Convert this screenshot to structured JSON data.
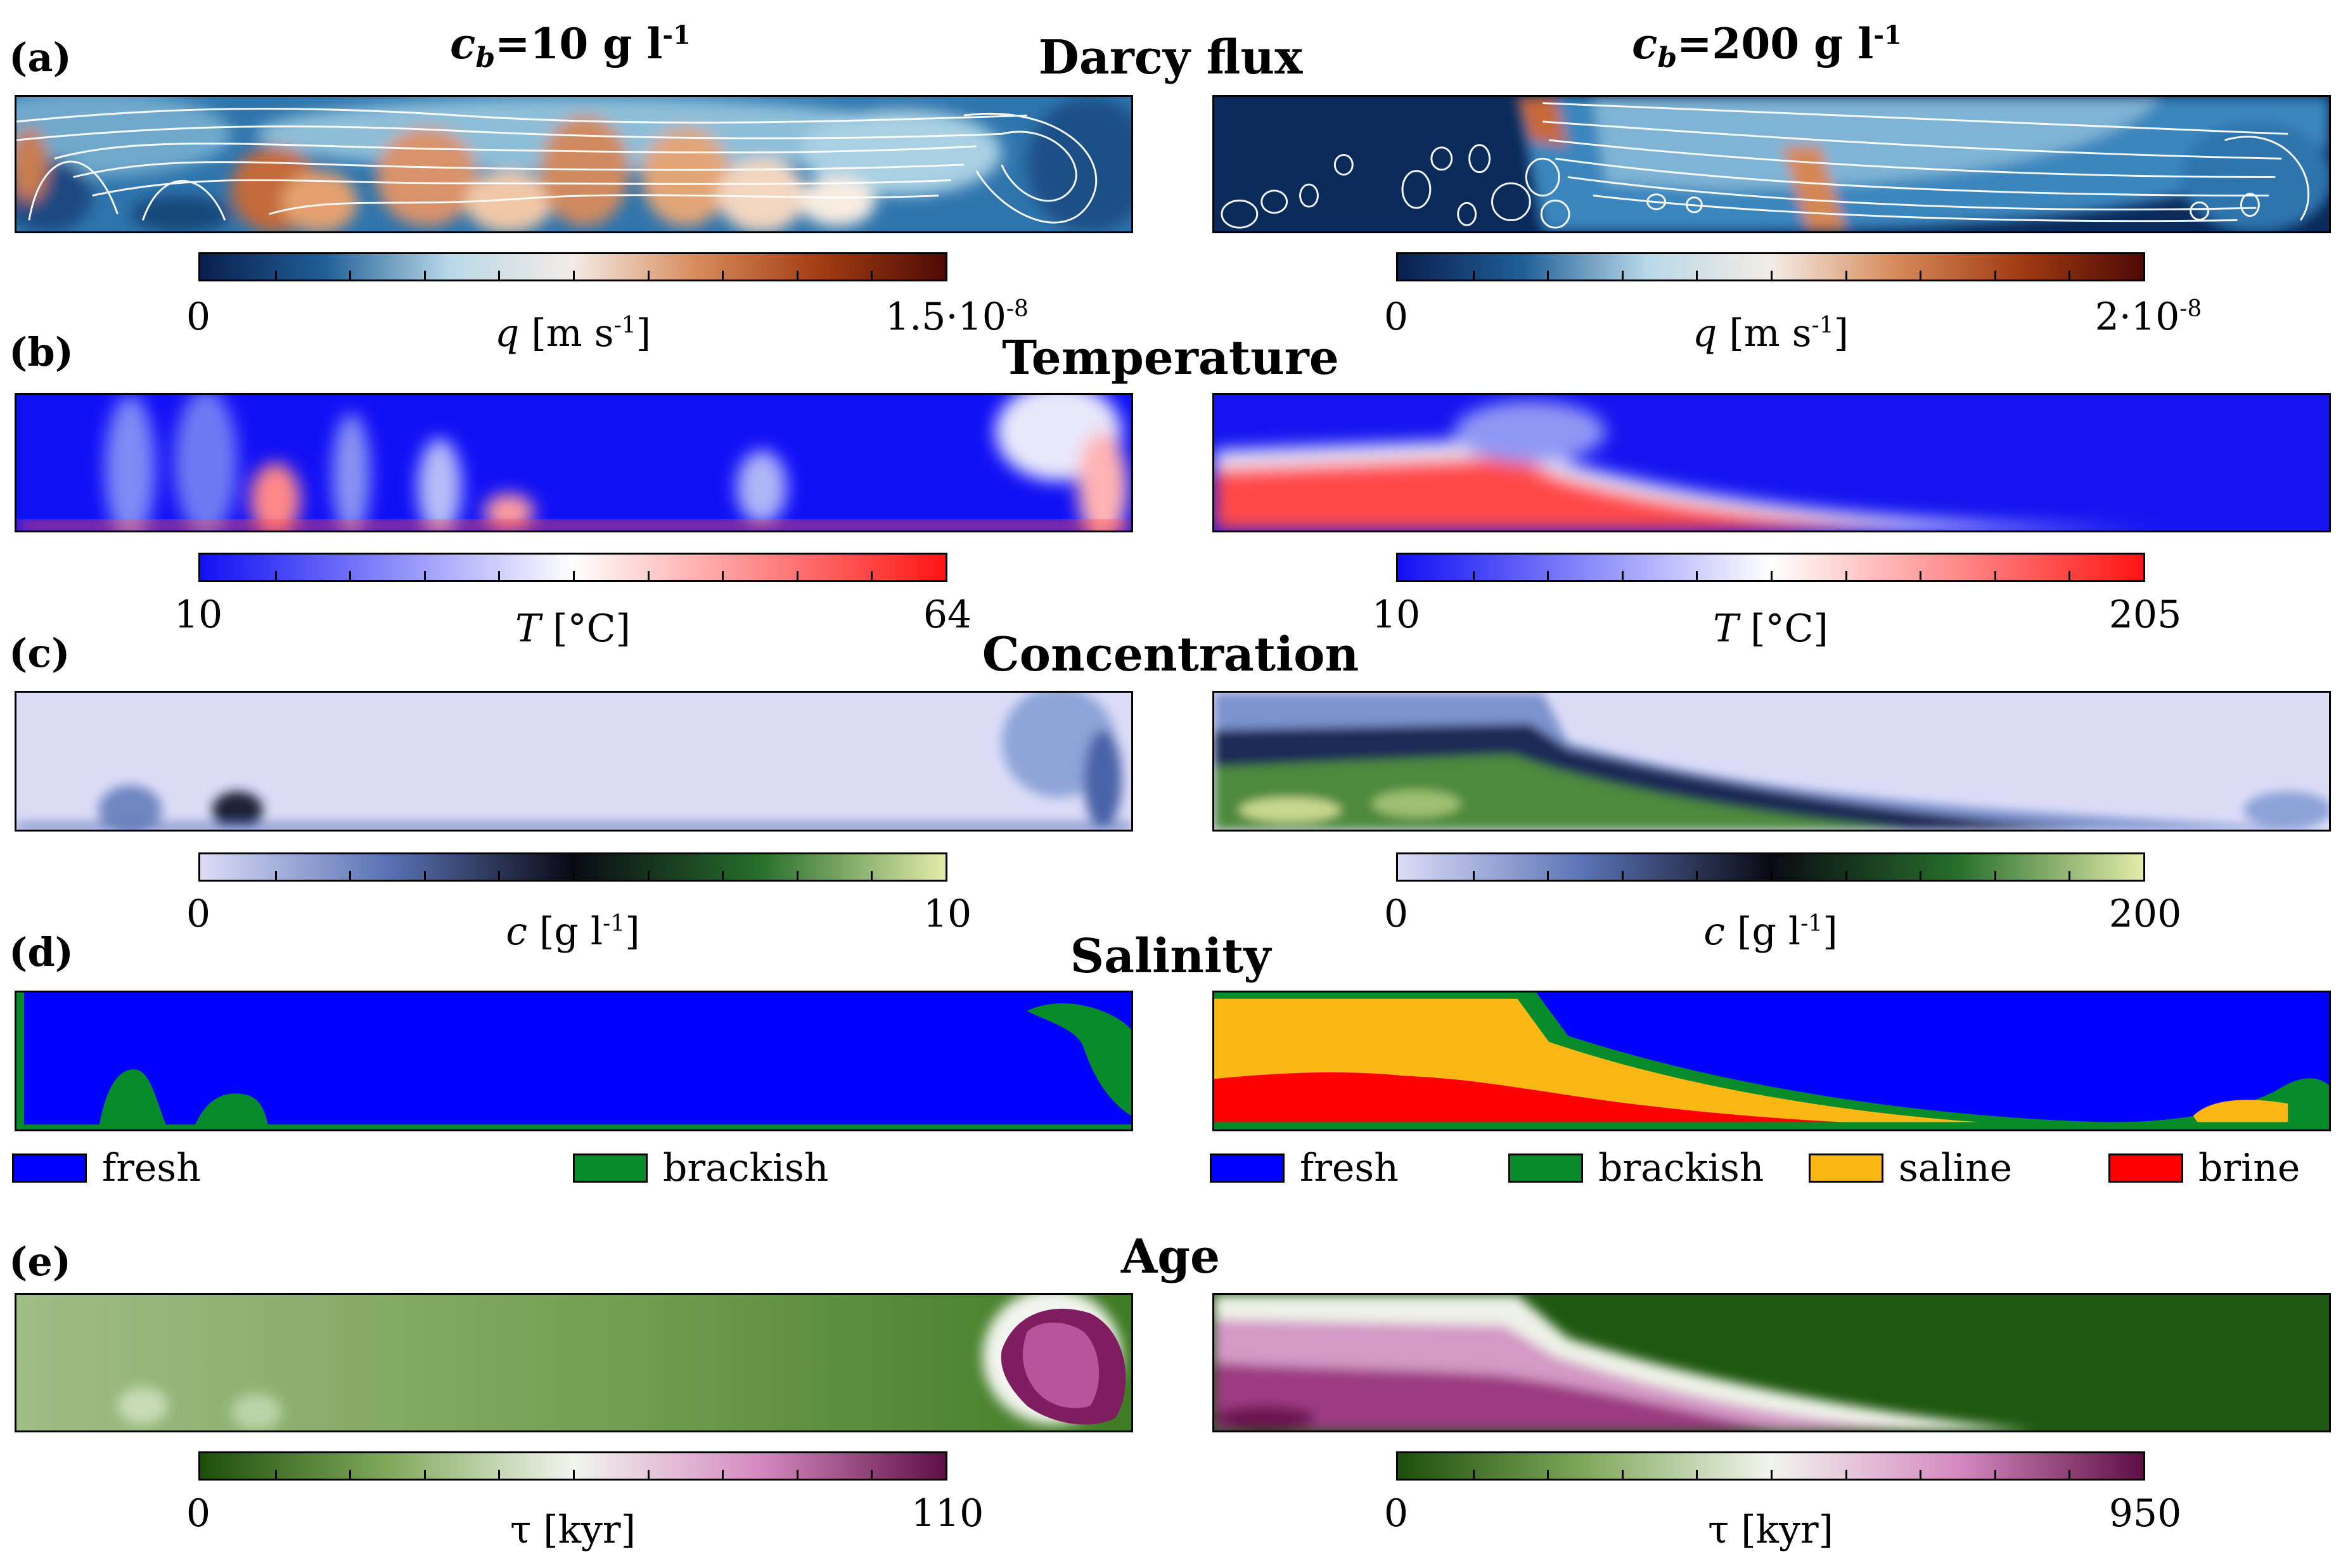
{
  "panels": {
    "a": {
      "letter": "(a)",
      "title": "Darcy flux"
    },
    "b": {
      "letter": "(b)",
      "title": "Temperature"
    },
    "c": {
      "letter": "(c)",
      "title": "Concentration"
    },
    "d": {
      "letter": "(d)",
      "title": "Salinity"
    },
    "e": {
      "letter": "(e)",
      "title": "Age"
    }
  },
  "columns": {
    "left": {
      "prefix": "c",
      "sub": "b",
      "value": "=10 g l",
      "sup": "-1"
    },
    "right": {
      "prefix": "c",
      "sub": "b",
      "value": "=200 g l",
      "sup": "-1"
    }
  },
  "colorbars": {
    "a_left": {
      "min": "0",
      "max": "1.5·10",
      "max_sup": "-8",
      "var": "q",
      "unit": " [m s",
      "unit_sup": "-1",
      "unit_end": "]"
    },
    "a_right": {
      "min": "0",
      "max": "2·10",
      "max_sup": "-8",
      "var": "q",
      "unit": " [m s",
      "unit_sup": "-1",
      "unit_end": "]"
    },
    "b_left": {
      "min": "10",
      "max": "64",
      "var": "T",
      "unit": " [°C]"
    },
    "b_right": {
      "min": "10",
      "max": "205",
      "var": "T",
      "unit": " [°C]"
    },
    "c_left": {
      "min": "0",
      "max": "10",
      "var": "c",
      "unit": " [g l",
      "unit_sup": "-1",
      "unit_end": "]"
    },
    "c_right": {
      "min": "0",
      "max": "200",
      "var": "c",
      "unit": " [g l",
      "unit_sup": "-1",
      "unit_end": "]"
    },
    "e_left": {
      "min": "0",
      "max": "110",
      "var": "τ",
      "unit": " [kyr]"
    },
    "e_right": {
      "min": "0",
      "max": "950",
      "var": "τ",
      "unit": " [kyr]"
    }
  },
  "colormaps": {
    "diverging_flux": [
      "#0a1f4d",
      "#1f5f96",
      "#b9d8e8",
      "#f4ece6",
      "#d78b5c",
      "#a13c12",
      "#4f0a05"
    ],
    "temperature": [
      "#1010f5",
      "#ffffff",
      "#ff1414"
    ],
    "concentration": [
      "#dcdcf7",
      "#5a73b5",
      "#0a0a14",
      "#276e2b",
      "#e3ecaa"
    ],
    "age": [
      "#1d4f0c",
      "#7fa85a",
      "#f2f5ee",
      "#d58ac1",
      "#5e0f45"
    ]
  },
  "legend_salinity": {
    "left": [
      {
        "label": "fresh",
        "color": "#0000ff"
      },
      {
        "label": "brackish",
        "color": "#078b2b"
      }
    ],
    "right": [
      {
        "label": "fresh",
        "color": "#0000ff"
      },
      {
        "label": "brackish",
        "color": "#078b2b"
      },
      {
        "label": "saline",
        "color": "#fbb714"
      },
      {
        "label": "brine",
        "color": "#ff0000"
      }
    ]
  },
  "chart_data": {
    "type": "heatmap",
    "panels": [
      "Darcy flux",
      "Temperature",
      "Concentration",
      "Salinity",
      "Age"
    ],
    "scenarios": [
      "c_b=10 g l-1",
      "c_b=200 g l-1"
    ],
    "ranges": {
      "q_left": [
        0,
        1.5e-08
      ],
      "q_right": [
        0,
        2e-08
      ],
      "T_left": [
        10,
        64
      ],
      "T_right": [
        10,
        205
      ],
      "c_left": [
        0,
        10
      ],
      "c_right": [
        0,
        200
      ],
      "tau_left": [
        0,
        110
      ],
      "tau_right": [
        0,
        950
      ]
    },
    "salinity_classes": [
      "fresh",
      "brackish",
      "saline",
      "brine"
    ]
  }
}
